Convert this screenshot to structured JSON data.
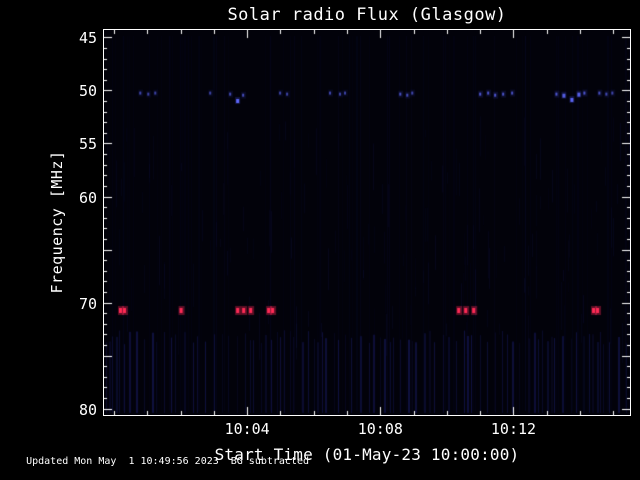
{
  "footer": {
    "updated": "Updated Mon May  1 10:49:56 2023",
    "note": "BG subtracted"
  },
  "chart_data": {
    "type": "heatmap",
    "title": "Solar radio Flux (Glasgow)",
    "xlabel": "Start Time (01-May-23 10:00:00)",
    "ylabel": "Frequency [MHz]",
    "x_domain_minutes": [
      -0.3,
      15.5
    ],
    "x_ticks": [
      {
        "minute": 4,
        "label": "10:04"
      },
      {
        "minute": 8,
        "label": "10:08"
      },
      {
        "minute": 12,
        "label": "10:12"
      }
    ],
    "x_minor_step_minutes": 1,
    "y_domain_mhz": [
      44.3,
      80.6
    ],
    "y_ticks": [
      45,
      50,
      55,
      60,
      70,
      80
    ],
    "y_minor_step_mhz": 1,
    "y_axis_inverted": true,
    "grid": false,
    "legend": "none",
    "colors": {
      "background": "#02020a",
      "axis": "#ffffff",
      "burst_red": "#ff2a55",
      "speck_blue": "#5a64ff",
      "noise_blue": "#1a1e70"
    },
    "features": {
      "red_bursts": {
        "frequency_mhz": 70.7,
        "color": "#ff2a55",
        "times_minutes": [
          0.18,
          0.3,
          2.0,
          3.7,
          3.88,
          4.09,
          4.63,
          4.75,
          10.34,
          10.55,
          10.79,
          14.39,
          14.51
        ]
      },
      "blue_specks": {
        "color": "#5a64ff",
        "points_minute_freq_brightness": [
          [
            0.79,
            50.2,
            0.35
          ],
          [
            1.03,
            50.3,
            0.3
          ],
          [
            1.24,
            50.2,
            0.3
          ],
          [
            2.89,
            50.2,
            0.3
          ],
          [
            3.49,
            50.3,
            0.4
          ],
          [
            3.7,
            50.9,
            0.95
          ],
          [
            3.88,
            50.4,
            0.45
          ],
          [
            4.99,
            50.2,
            0.3
          ],
          [
            5.2,
            50.3,
            0.3
          ],
          [
            6.49,
            50.2,
            0.35
          ],
          [
            6.79,
            50.3,
            0.3
          ],
          [
            6.94,
            50.2,
            0.3
          ],
          [
            8.6,
            50.3,
            0.5
          ],
          [
            8.81,
            50.4,
            0.45
          ],
          [
            8.96,
            50.2,
            0.35
          ],
          [
            11.0,
            50.3,
            0.6
          ],
          [
            11.24,
            50.2,
            0.55
          ],
          [
            11.45,
            50.4,
            0.6
          ],
          [
            11.69,
            50.3,
            0.55
          ],
          [
            11.96,
            50.2,
            0.5
          ],
          [
            13.29,
            50.3,
            0.6
          ],
          [
            13.5,
            50.4,
            0.75
          ],
          [
            13.74,
            50.8,
            0.9
          ],
          [
            13.95,
            50.3,
            0.8
          ],
          [
            14.13,
            50.2,
            0.6
          ],
          [
            14.58,
            50.2,
            0.5
          ],
          [
            14.79,
            50.3,
            0.4
          ],
          [
            14.97,
            50.2,
            0.35
          ]
        ]
      },
      "noise": {
        "seed": 987654321,
        "full_height_columns": 80,
        "mid_band_dashes": 150,
        "mid_band_freq_mhz": [
          52,
          72
        ],
        "bottom_comb_band_freq_mhz": [
          72.6,
          80.4
        ]
      }
    }
  }
}
